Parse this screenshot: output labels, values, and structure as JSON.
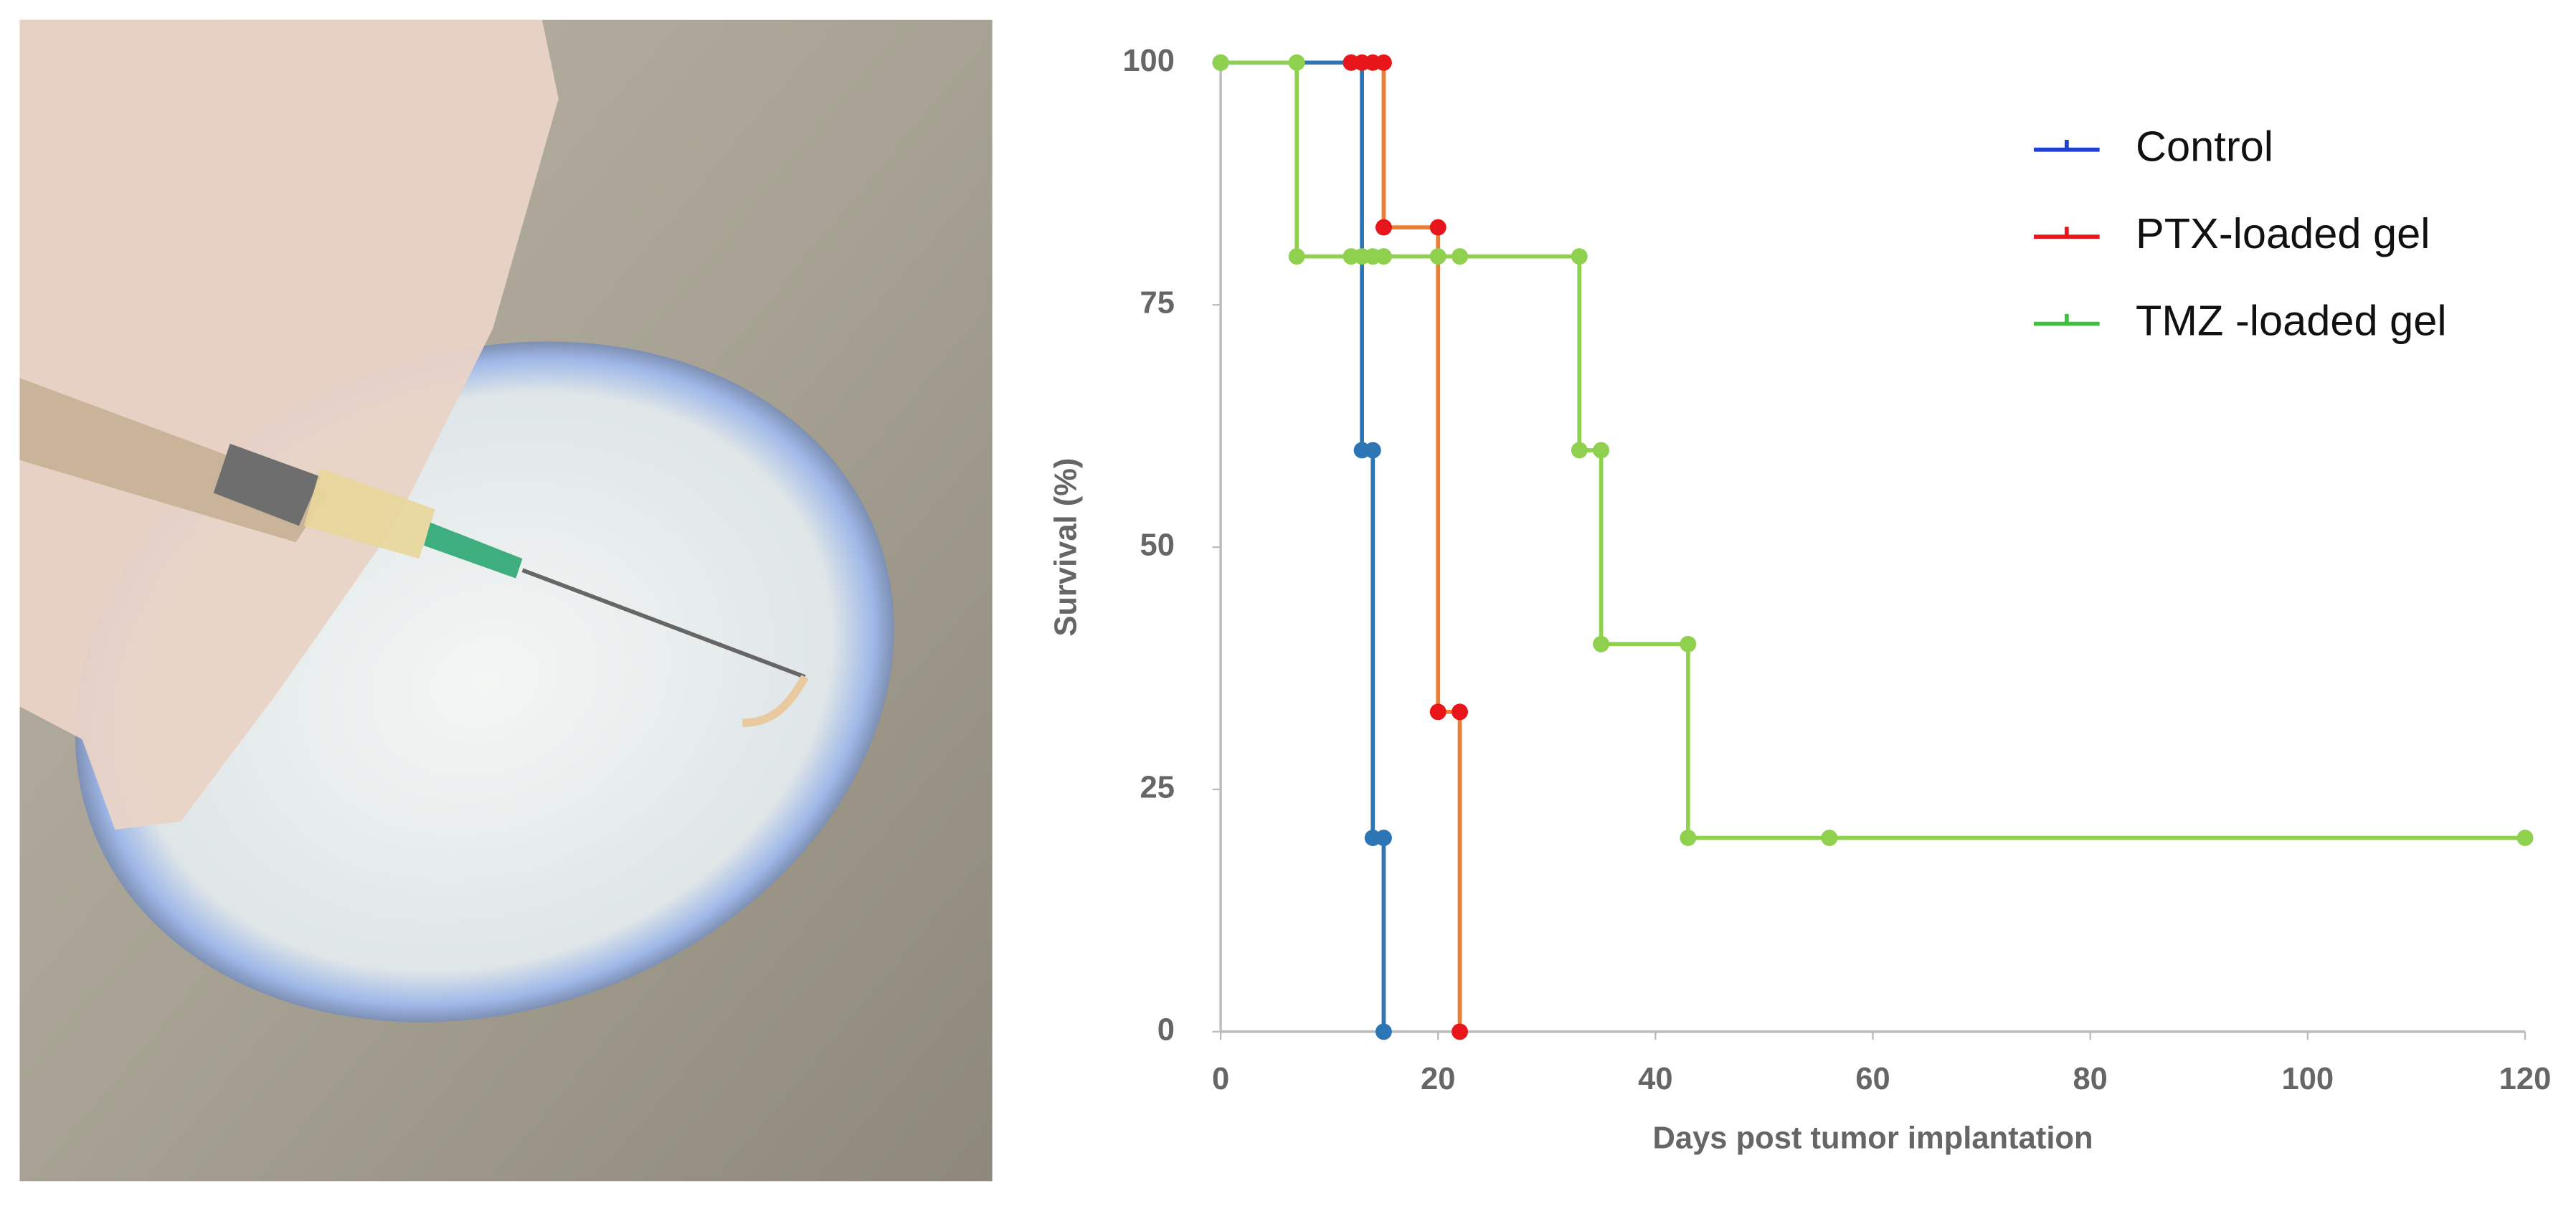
{
  "chart_data": {
    "type": "step",
    "xlabel": "Days post tumor implantation",
    "ylabel": "Survival (%)",
    "xlim": [
      0,
      120
    ],
    "xticks": [
      0,
      20,
      40,
      60,
      80,
      100,
      120
    ],
    "ylim": [
      0,
      100
    ],
    "yticks": [
      0,
      25,
      50,
      75,
      100
    ],
    "legend": "upper right",
    "series": [
      {
        "name": "Control",
        "color": "#2e75b6",
        "marker_color": "#2e75b6",
        "legend_color": "#1f3fcf",
        "x": [
          0,
          12,
          13,
          14,
          14,
          15,
          15
        ],
        "values": [
          100,
          100,
          60,
          60,
          20,
          20,
          0
        ]
      },
      {
        "name": "PTX-loaded gel",
        "color": "#ed7d31",
        "marker_color": "#e8161b",
        "legend_color": "#e8161b",
        "x": [
          12,
          13,
          14,
          15,
          15,
          20,
          20,
          22,
          22
        ],
        "values": [
          100,
          100,
          100,
          100,
          83,
          83,
          33,
          33,
          0
        ]
      },
      {
        "name": "TMZ -loaded gel",
        "color": "#8fd14f",
        "marker_color": "#8fd14f",
        "legend_color": "#3fbf3f",
        "x": [
          0,
          7,
          7,
          12,
          13,
          14,
          15,
          20,
          22,
          33,
          33,
          35,
          35,
          43,
          43,
          56,
          120
        ],
        "values": [
          100,
          100,
          80,
          80,
          80,
          80,
          80,
          80,
          80,
          80,
          60,
          60,
          40,
          40,
          20,
          20,
          20
        ]
      }
    ]
  }
}
